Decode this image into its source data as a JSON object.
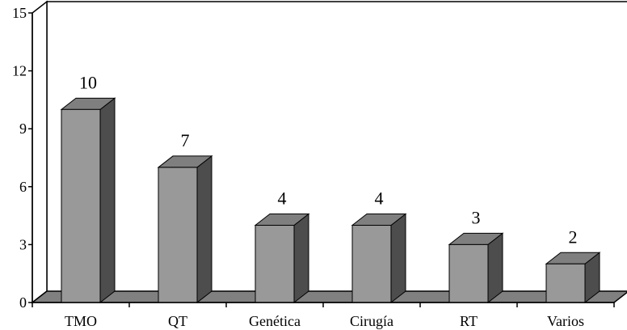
{
  "chart_data": {
    "type": "bar",
    "title": "",
    "xlabel": "",
    "ylabel": "",
    "categories": [
      "TMO",
      "QT",
      "Genética",
      "Cirugía",
      "RT",
      "Varios"
    ],
    "values": [
      10,
      7,
      4,
      4,
      3,
      2
    ],
    "data_labels": [
      "10",
      "7",
      "4",
      "4",
      "3",
      "2"
    ],
    "ylim": [
      0,
      15
    ],
    "yticks": [
      0,
      3,
      6,
      9,
      12,
      15
    ],
    "ytick_labels": [
      "0",
      "3",
      "6",
      "9",
      "12",
      "15"
    ],
    "grid": false,
    "style": "3d-column",
    "colors": {
      "bar_front": "#999999",
      "bar_top": "#7f7f7f",
      "bar_side": "#4d4d4d",
      "floor": "#808080",
      "axis": "#000000"
    }
  }
}
